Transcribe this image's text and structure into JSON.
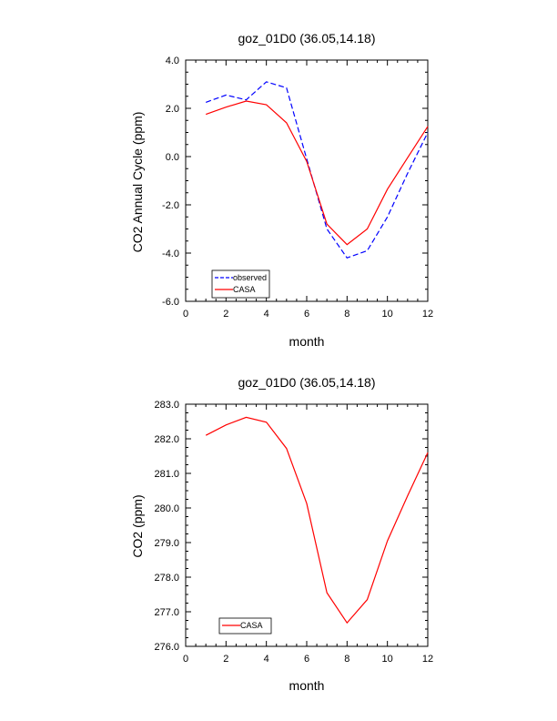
{
  "chart_data": [
    {
      "type": "line",
      "title": "goz_01D0 (36.05,14.18)",
      "xlabel": "month",
      "ylabel": "CO2 Annual Cycle (ppm)",
      "xlim": [
        0,
        12
      ],
      "ylim": [
        -6.0,
        4.0
      ],
      "xticks": [
        "0",
        "2",
        "4",
        "6",
        "8",
        "10",
        "12"
      ],
      "yticks": [
        "-6.0",
        "-4.0",
        "-2.0",
        "0.0",
        "2.0",
        "4.0"
      ],
      "legend_position": "bottom-left",
      "series": [
        {
          "name": "observed",
          "color": "#0000ff",
          "dash": "dashed",
          "x": [
            1,
            2,
            3,
            4,
            5,
            6,
            7,
            8,
            9,
            10,
            11,
            12
          ],
          "values": [
            2.25,
            2.55,
            2.35,
            3.1,
            2.85,
            -0.1,
            -3.0,
            -4.2,
            -3.9,
            -2.5,
            -0.7,
            1.0
          ]
        },
        {
          "name": "CASA",
          "color": "#ff0000",
          "dash": "solid",
          "x": [
            1,
            2,
            3,
            4,
            5,
            6,
            7,
            8,
            9,
            10,
            11,
            12
          ],
          "values": [
            1.75,
            2.05,
            2.3,
            2.15,
            1.4,
            -0.2,
            -2.8,
            -3.65,
            -3.0,
            -1.35,
            -0.05,
            1.25
          ]
        }
      ]
    },
    {
      "type": "line",
      "title": "goz_01D0 (36.05,14.18)",
      "xlabel": "month",
      "ylabel": "CO2 (ppm)",
      "xlim": [
        0,
        12
      ],
      "ylim": [
        276.0,
        283.0
      ],
      "xticks": [
        "0",
        "2",
        "4",
        "6",
        "8",
        "10",
        "12"
      ],
      "yticks": [
        "276.0",
        "277.0",
        "278.0",
        "279.0",
        "280.0",
        "281.0",
        "282.0",
        "283.0"
      ],
      "legend_position": "bottom-left",
      "series": [
        {
          "name": "CASA",
          "color": "#ff0000",
          "dash": "solid",
          "x": [
            1,
            2,
            3,
            4,
            5,
            6,
            7,
            8,
            9,
            10,
            11,
            12
          ],
          "values": [
            282.1,
            282.4,
            282.62,
            282.48,
            281.72,
            280.13,
            277.55,
            276.68,
            277.35,
            279.05,
            280.35,
            281.6
          ]
        }
      ]
    }
  ]
}
